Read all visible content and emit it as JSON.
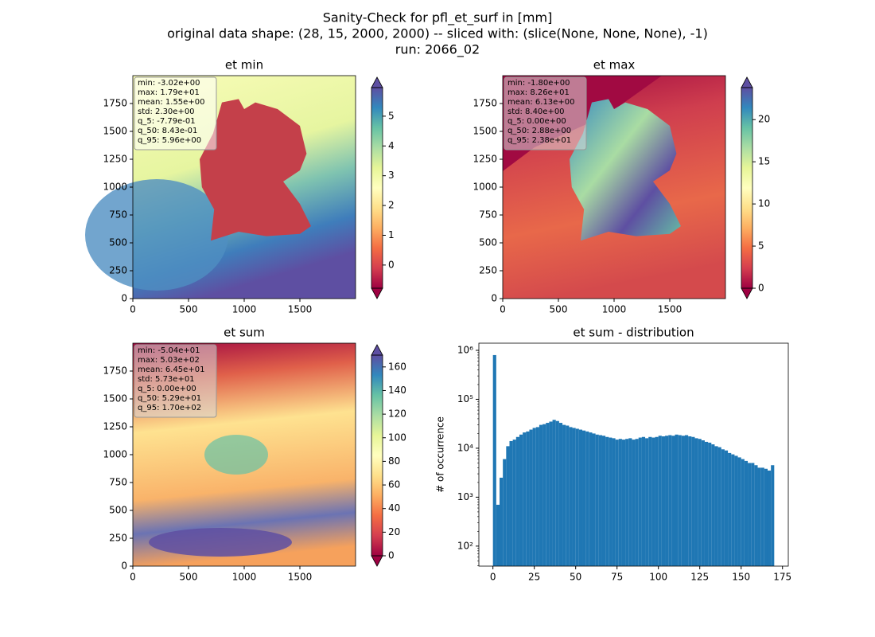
{
  "title": [
    "Sanity-Check for pfl_et_surf in [mm]",
    "original data shape: (28, 15, 2000, 2000) -- sliced with: (slice(None, None, None), -1)",
    "run: 2066_02"
  ],
  "chart_data": [
    {
      "type": "heatmap",
      "title": "et min",
      "colormap": "Spectral",
      "colorbar_extend": "both",
      "xlim": [
        0,
        2000
      ],
      "ylim": [
        0,
        2000
      ],
      "xticks": [
        0,
        500,
        1000,
        1500
      ],
      "yticks": [
        0,
        250,
        500,
        750,
        1000,
        1250,
        1500,
        1750
      ],
      "clim": [
        -0.779,
        5.96
      ],
      "cticks": [
        0,
        1,
        2,
        3,
        4,
        5
      ],
      "stats": [
        "min: -3.02e+00",
        "max: 1.79e+01",
        "mean: 1.55e+00",
        "std: 2.30e+00",
        "q_5: -7.79e-01",
        "q_50: 8.43e-01",
        "q_95: 5.96e+00"
      ]
    },
    {
      "type": "heatmap",
      "title": "et max",
      "colormap": "Spectral",
      "colorbar_extend": "both",
      "xlim": [
        0,
        2000
      ],
      "ylim": [
        0,
        2000
      ],
      "xticks": [
        0,
        500,
        1000,
        1500
      ],
      "yticks": [
        0,
        250,
        500,
        750,
        1000,
        1250,
        1500,
        1750
      ],
      "clim": [
        0,
        23.8
      ],
      "cticks": [
        0,
        5,
        10,
        15,
        20
      ],
      "stats": [
        "min: -1.80e+00",
        "max: 8.26e+01",
        "mean: 6.13e+00",
        "std: 8.40e+00",
        "q_5: 0.00e+00",
        "q_50: 2.88e+00",
        "q_95: 2.38e+01"
      ]
    },
    {
      "type": "heatmap",
      "title": "et sum",
      "colormap": "Spectral",
      "colorbar_extend": "both",
      "xlim": [
        0,
        2000
      ],
      "ylim": [
        0,
        2000
      ],
      "xticks": [
        0,
        500,
        1000,
        1500
      ],
      "yticks": [
        0,
        250,
        500,
        750,
        1000,
        1250,
        1500,
        1750
      ],
      "clim": [
        0,
        170
      ],
      "cticks": [
        0,
        20,
        40,
        60,
        80,
        100,
        120,
        140,
        160
      ],
      "stats": [
        "min: -5.04e+01",
        "max: 5.03e+02",
        "mean: 6.45e+01",
        "std: 5.73e+01",
        "q_5: 0.00e+00",
        "q_50: 5.29e+01",
        "q_95: 1.70e+02"
      ]
    },
    {
      "type": "histogram",
      "title": "et sum - distribution",
      "ylabel": "# of occurrence",
      "color": "#1f77b4",
      "log_y": true,
      "xlim": [
        -8.5,
        178.5
      ],
      "ylim": [
        39,
        1400000
      ],
      "xticks": [
        0,
        25,
        50,
        75,
        100,
        125,
        150,
        175
      ],
      "yticks": [
        {
          "value": 100,
          "label": "10²"
        },
        {
          "value": 1000,
          "label": "10³"
        },
        {
          "value": 10000,
          "label": "10⁴"
        },
        {
          "value": 100000,
          "label": "10⁵"
        },
        {
          "value": 1000000,
          "label": "10⁶"
        }
      ],
      "bins": [
        0,
        2,
        4,
        6,
        8,
        10,
        12,
        14,
        16,
        18,
        20,
        22,
        24,
        26,
        28,
        30,
        32,
        34,
        36,
        38,
        40,
        42,
        44,
        46,
        48,
        50,
        52,
        54,
        56,
        58,
        60,
        62,
        64,
        66,
        68,
        70,
        72,
        74,
        76,
        78,
        80,
        82,
        84,
        86,
        88,
        90,
        92,
        94,
        96,
        98,
        100,
        102,
        104,
        106,
        108,
        110,
        112,
        114,
        116,
        118,
        120,
        122,
        124,
        126,
        128,
        130,
        132,
        134,
        136,
        138,
        140,
        142,
        144,
        146,
        148,
        150,
        152,
        154,
        156,
        158,
        160,
        162,
        164,
        166,
        168,
        170
      ],
      "counts": [
        800000,
        700,
        2500,
        6000,
        11000,
        14000,
        15000,
        17000,
        19000,
        21000,
        22000,
        24000,
        26000,
        27000,
        30000,
        31000,
        33000,
        35000,
        38000,
        36000,
        33000,
        30000,
        29000,
        27000,
        26000,
        25000,
        24000,
        23000,
        22000,
        21000,
        20000,
        19000,
        18500,
        18000,
        17000,
        16500,
        16000,
        15000,
        15500,
        15000,
        15500,
        16000,
        15000,
        15500,
        16500,
        17000,
        16000,
        17000,
        16500,
        17000,
        18000,
        17500,
        18000,
        18500,
        18000,
        19000,
        18500,
        18000,
        18500,
        17500,
        17000,
        16000,
        15500,
        14500,
        13500,
        13000,
        12000,
        11000,
        10500,
        9500,
        9000,
        8000,
        7500,
        7000,
        6500,
        6000,
        5500,
        5000,
        5000,
        4500,
        4000,
        4000,
        3800,
        3500,
        4500
      ]
    }
  ]
}
